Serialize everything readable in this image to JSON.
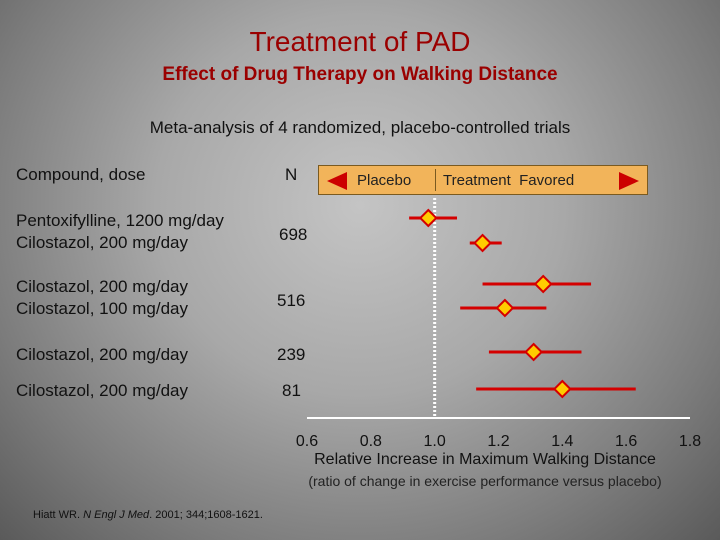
{
  "title": "Treatment of PAD",
  "subtitle": "Effect of Drug Therapy on Walking Distance",
  "meta_text": "Meta-analysis of 4 randomized, placebo-controlled trials",
  "header": {
    "compound": "Compound, dose",
    "n": "N"
  },
  "legend": {
    "placebo": "Placebo",
    "treatment": "Treatment  Favored"
  },
  "groups": [
    {
      "label": "Pentoxifylline, 1200 mg/day\nCilostazol, 200 mg/day",
      "n": "698"
    },
    {
      "label": "Cilostazol, 200 mg/day\nCilostazol, 100 mg/day",
      "n": "516"
    },
    {
      "label": "Cilostazol, 200 mg/day",
      "n": "239"
    },
    {
      "label": "Cilostazol, 200 mg/day",
      "n": "81"
    }
  ],
  "reference": {
    "authors": "Hiatt WR. ",
    "journal": "N Engl J Med",
    "rest": ". 2001; 344;1608-1621."
  },
  "colors": {
    "title": "#9a0000",
    "marker": "#ffcc00",
    "ci_line": "#d40000",
    "axis": "#ffffff",
    "legend_bg": "#f2b45a"
  },
  "chart_data": {
    "type": "forest",
    "xlabel": "Relative Increase in Maximum Walking Distance",
    "xlabel_sub": "(ratio of change in exercise performance versus placebo)",
    "xlim": [
      0.6,
      1.8
    ],
    "x_ticks": [
      0.6,
      0.8,
      1.0,
      1.2,
      1.4,
      1.6,
      1.8
    ],
    "tick_labels": [
      "0.6",
      "0.8",
      "1.0",
      "1.2",
      "1.4",
      "1.6",
      "1.8"
    ],
    "reference_line": 1.0,
    "points": [
      {
        "compound": "Pentoxifylline, 1200 mg/day",
        "estimate": 0.98,
        "ci": [
          0.92,
          1.07
        ]
      },
      {
        "compound": "Cilostazol, 200 mg/day",
        "estimate": 1.15,
        "ci": [
          1.11,
          1.21
        ]
      },
      {
        "compound": "Cilostazol, 200 mg/day",
        "estimate": 1.34,
        "ci": [
          1.15,
          1.49
        ]
      },
      {
        "compound": "Cilostazol, 100 mg/day",
        "estimate": 1.22,
        "ci": [
          1.08,
          1.35
        ]
      },
      {
        "compound": "Cilostazol, 200 mg/day",
        "estimate": 1.31,
        "ci": [
          1.17,
          1.46
        ]
      },
      {
        "compound": "Cilostazol, 200 mg/day",
        "estimate": 1.4,
        "ci": [
          1.13,
          1.63
        ]
      }
    ]
  }
}
